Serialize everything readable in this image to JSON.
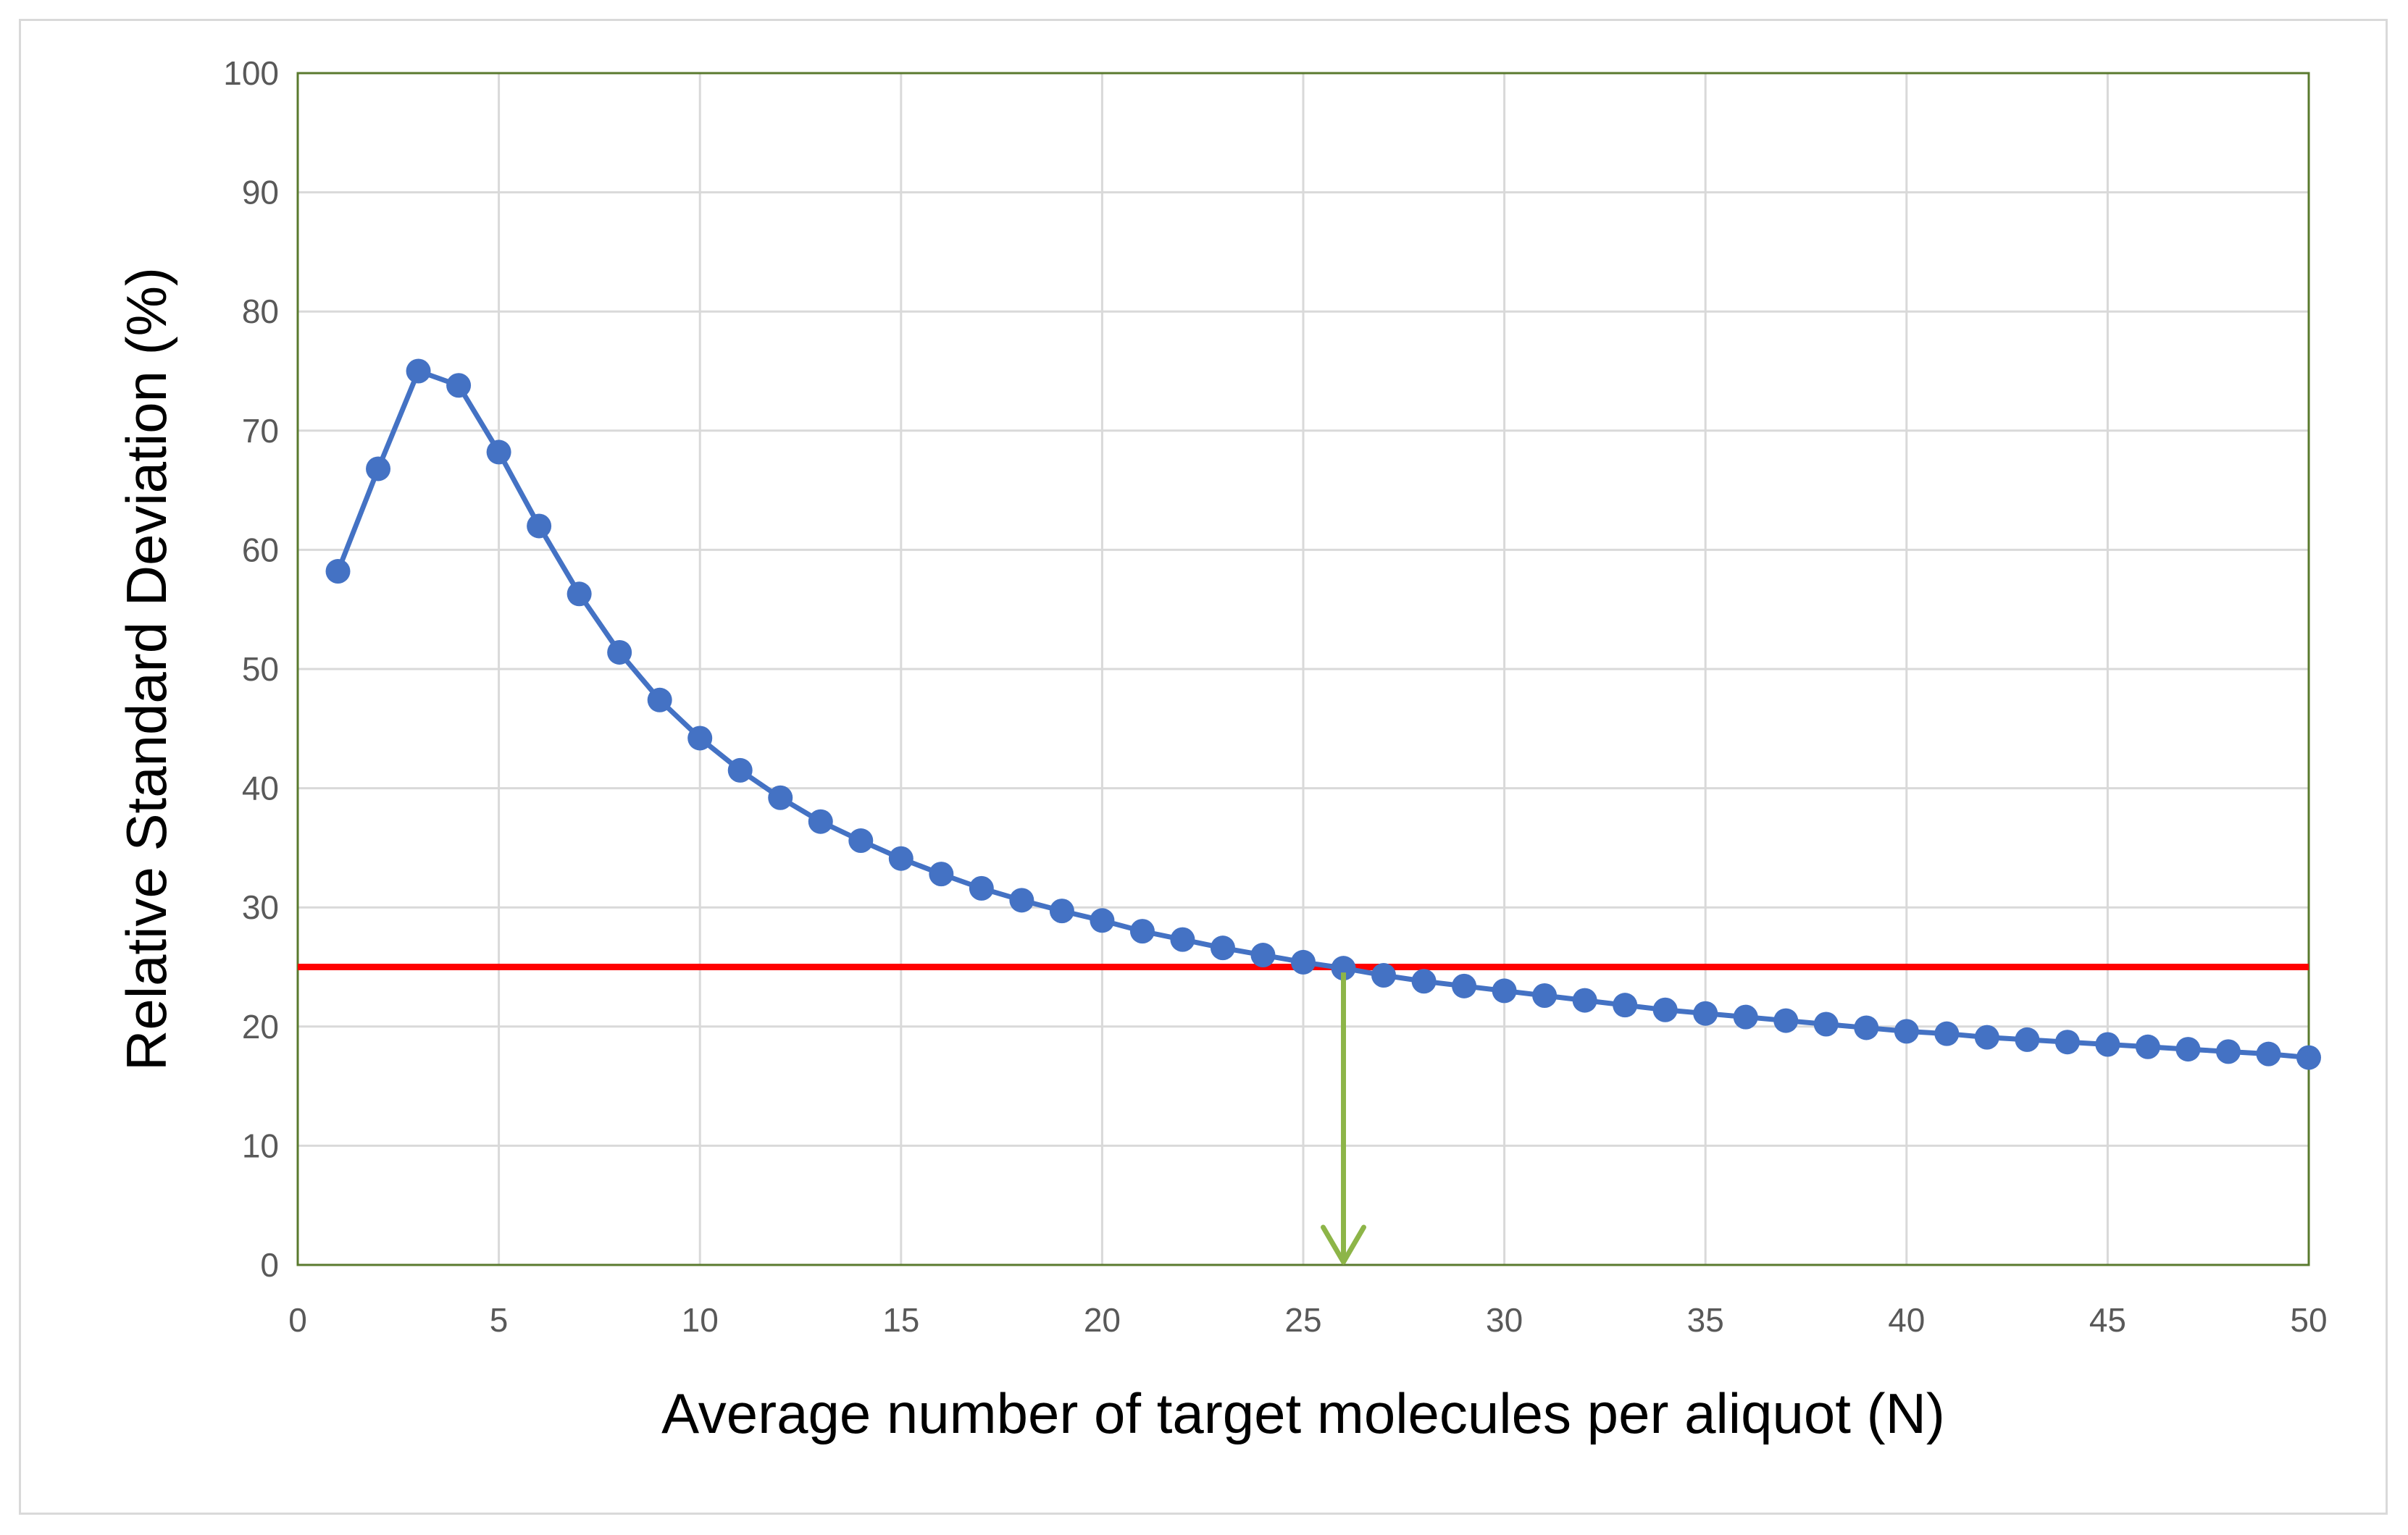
{
  "chart_data": {
    "type": "line",
    "xlabel": "Average number of target molecules per aliquot (N)",
    "ylabel": "Relative Standard Deviation (%)",
    "xlim": [
      0,
      50
    ],
    "ylim": [
      0,
      100
    ],
    "xticks": [
      0,
      5,
      10,
      15,
      20,
      25,
      30,
      35,
      40,
      45,
      50
    ],
    "yticks": [
      0,
      10,
      20,
      30,
      40,
      50,
      60,
      70,
      80,
      90,
      100
    ],
    "grid": true,
    "legend": "none",
    "series": [
      {
        "color": "#4472c4",
        "x": [
          1,
          2,
          3,
          4,
          5,
          6,
          7,
          8,
          9,
          10,
          11,
          12,
          13,
          14,
          15,
          16,
          17,
          18,
          19,
          20,
          21,
          22,
          23,
          24,
          25,
          26,
          27,
          28,
          29,
          30,
          31,
          32,
          33,
          34,
          35,
          36,
          37,
          38,
          39,
          40,
          41,
          42,
          43,
          44,
          45,
          46,
          47,
          48,
          49,
          50
        ],
        "y": [
          58.2,
          66.8,
          75.0,
          73.8,
          68.2,
          62.0,
          56.3,
          51.4,
          47.4,
          44.2,
          41.5,
          39.2,
          37.2,
          35.6,
          34.1,
          32.8,
          31.6,
          30.6,
          29.7,
          28.9,
          28.0,
          27.3,
          26.6,
          26.0,
          25.4,
          24.9,
          24.3,
          23.8,
          23.4,
          23.0,
          22.6,
          22.2,
          21.8,
          21.4,
          21.1,
          20.8,
          20.5,
          20.2,
          19.9,
          19.6,
          19.4,
          19.1,
          18.9,
          18.7,
          18.5,
          18.3,
          18.1,
          17.9,
          17.7,
          17.4
        ]
      }
    ],
    "annotations": {
      "threshold": {
        "y": 25,
        "color": "#ff0000"
      },
      "arrow": {
        "x": 26,
        "from_y": 24.9,
        "to_y": 0,
        "color": "#8db548"
      }
    }
  }
}
